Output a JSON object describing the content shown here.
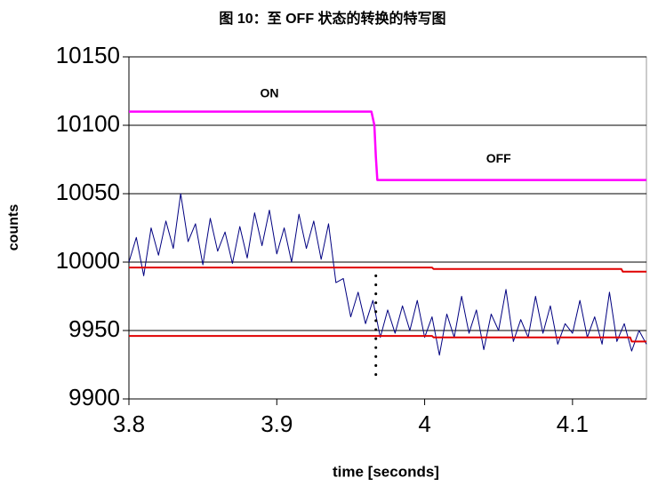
{
  "chart_data": {
    "type": "line",
    "title": "图 10：至 OFF 状态的转换的特写图",
    "xlabel": "time [seconds]",
    "ylabel": "counts",
    "xlim": [
      3.8,
      4.15
    ],
    "ylim": [
      9900,
      10150
    ],
    "xticks": [
      3.8,
      3.9,
      4,
      4.1
    ],
    "yticks": [
      9900,
      9950,
      10000,
      10050,
      10100,
      10150
    ],
    "grid": true,
    "annotations": [
      {
        "text": "ON",
        "x": 3.895,
        "y": 10123
      },
      {
        "text": "OFF",
        "x": 4.05,
        "y": 10075
      }
    ],
    "series": [
      {
        "color": "#000080",
        "width": 1,
        "x": [
          3.8,
          3.805,
          3.81,
          3.815,
          3.82,
          3.825,
          3.83,
          3.835,
          3.84,
          3.845,
          3.85,
          3.855,
          3.86,
          3.865,
          3.87,
          3.875,
          3.88,
          3.885,
          3.89,
          3.895,
          3.9,
          3.905,
          3.91,
          3.915,
          3.92,
          3.925,
          3.93,
          3.935,
          3.94,
          3.945,
          3.95,
          3.955,
          3.96,
          3.965,
          3.97,
          3.975,
          3.98,
          3.985,
          3.99,
          3.995,
          4.0,
          4.005,
          4.01,
          4.015,
          4.02,
          4.025,
          4.03,
          4.035,
          4.04,
          4.045,
          4.05,
          4.055,
          4.06,
          4.065,
          4.07,
          4.075,
          4.08,
          4.085,
          4.09,
          4.095,
          4.1,
          4.105,
          4.11,
          4.115,
          4.12,
          4.125,
          4.13,
          4.135,
          4.14,
          4.145,
          4.15
        ],
        "values": [
          10000,
          10018,
          9990,
          10025,
          10005,
          10030,
          10010,
          10050,
          10015,
          10028,
          9998,
          10032,
          10008,
          10022,
          9999,
          10026,
          10003,
          10036,
          10012,
          10038,
          10006,
          10025,
          10000,
          10035,
          10010,
          10030,
          10002,
          10028,
          9985,
          9988,
          9960,
          9978,
          9955,
          9972,
          9945,
          9965,
          9948,
          9968,
          9950,
          9972,
          9945,
          9960,
          9932,
          9962,
          9945,
          9975,
          9948,
          9965,
          9936,
          9962,
          9950,
          9980,
          9942,
          9958,
          9945,
          9975,
          9948,
          9968,
          9940,
          9955,
          9948,
          9972,
          9945,
          9960,
          9940,
          9978,
          9942,
          9955,
          9935,
          9950,
          9940
        ]
      },
      {
        "color": "#ff00ff",
        "width": 2.5,
        "x": [
          3.8,
          3.964,
          3.966,
          3.967,
          3.968,
          4.15
        ],
        "values": [
          10110,
          10110,
          10100,
          10077,
          10060,
          10060
        ]
      },
      {
        "color": "#e00000",
        "width": 2,
        "x": [
          3.8,
          4.005,
          4.006,
          4.133,
          4.134,
          4.15
        ],
        "values": [
          9996,
          9996,
          9995,
          9995,
          9993,
          9993
        ]
      },
      {
        "color": "#e00000",
        "width": 2,
        "x": [
          3.8,
          4.005,
          4.006,
          4.139,
          4.14,
          4.15
        ],
        "values": [
          9946,
          9946,
          9945,
          9945,
          9942,
          9942
        ]
      },
      {
        "color": "#000000",
        "width": 3,
        "dash": "dotted",
        "x": [
          3.967,
          3.967
        ],
        "values": [
          9990,
          9914
        ]
      }
    ]
  }
}
